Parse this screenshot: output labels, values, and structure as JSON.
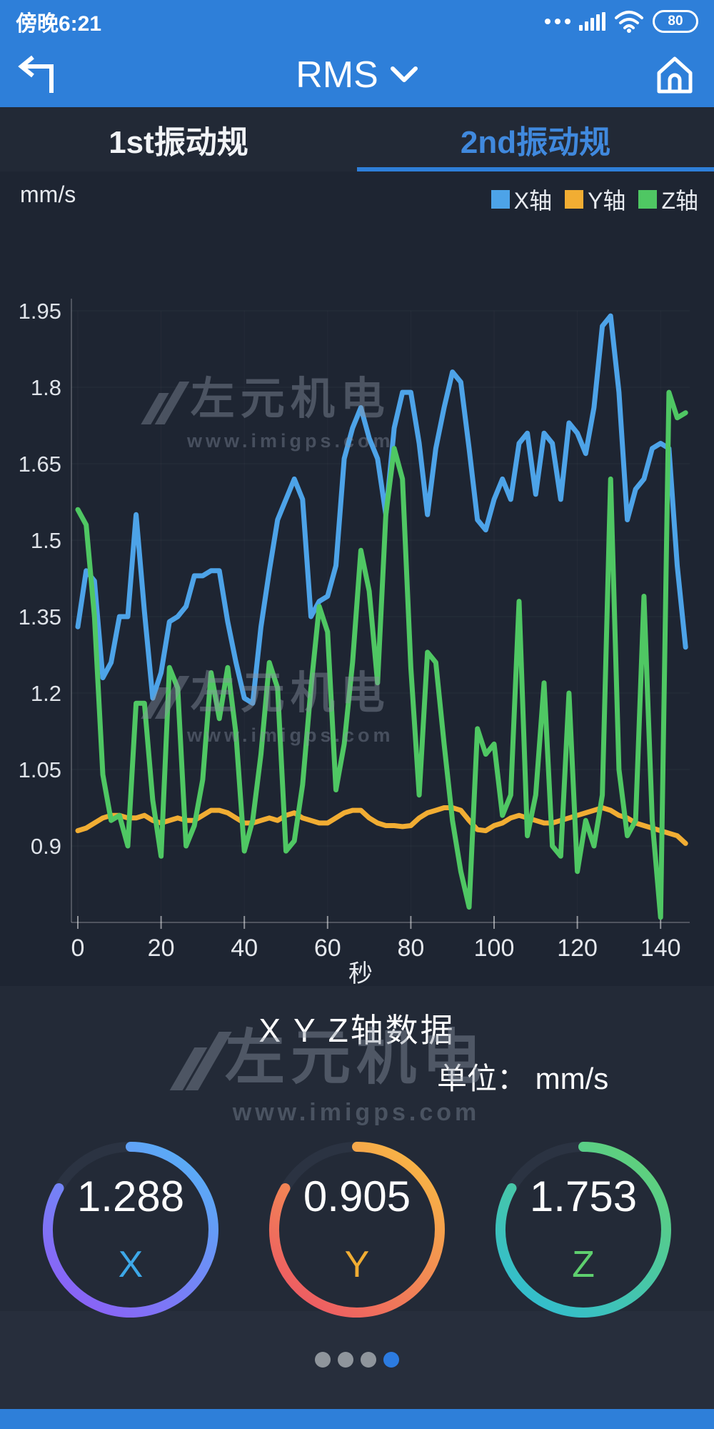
{
  "status_bar": {
    "time": "傍晚6:21",
    "battery": "80"
  },
  "header": {
    "title": "RMS"
  },
  "tabs": [
    {
      "label": "1st振动规",
      "active": false
    },
    {
      "label": "2nd振动规",
      "active": true
    }
  ],
  "chart": {
    "unit_label": "mm/s",
    "xlabel": "秒"
  },
  "watermark": {
    "logo": "左元机电",
    "url": "www.imigps.com"
  },
  "chart_data": {
    "type": "line",
    "title": "",
    "xlabel": "秒",
    "ylabel": "mm/s",
    "ylim": [
      0.75,
      2.02
    ],
    "xlim": [
      0,
      148
    ],
    "grid": false,
    "legend_position": "top-right",
    "yticks": [
      {
        "v": 1.95,
        "label": "1.95"
      },
      {
        "v": 1.8,
        "label": "1.8"
      },
      {
        "v": 1.65,
        "label": "1.65"
      },
      {
        "v": 1.5,
        "label": "1.5"
      },
      {
        "v": 1.35,
        "label": "1.35"
      },
      {
        "v": 1.2,
        "label": "1.2"
      },
      {
        "v": 1.05,
        "label": "1.05"
      },
      {
        "v": 0.9,
        "label": "0.9"
      }
    ],
    "xticks": [
      0,
      20,
      40,
      60,
      80,
      100,
      120,
      140
    ],
    "x": [
      0,
      2,
      4,
      6,
      8,
      10,
      12,
      14,
      16,
      18,
      20,
      22,
      24,
      26,
      28,
      30,
      32,
      34,
      36,
      38,
      40,
      42,
      44,
      46,
      48,
      50,
      52,
      54,
      56,
      58,
      60,
      62,
      64,
      66,
      68,
      70,
      72,
      74,
      76,
      78,
      80,
      82,
      84,
      86,
      88,
      90,
      92,
      94,
      96,
      98,
      100,
      102,
      104,
      106,
      108,
      110,
      112,
      114,
      116,
      118,
      120,
      122,
      124,
      126,
      128,
      130,
      132,
      134,
      136,
      138,
      140,
      142,
      144,
      146
    ],
    "series": [
      {
        "name": "X轴",
        "color": "#4da3e8",
        "values": [
          1.33,
          1.44,
          1.42,
          1.23,
          1.26,
          1.35,
          1.35,
          1.55,
          1.36,
          1.19,
          1.24,
          1.34,
          1.35,
          1.37,
          1.43,
          1.43,
          1.44,
          1.44,
          1.34,
          1.26,
          1.19,
          1.18,
          1.33,
          1.44,
          1.54,
          1.58,
          1.62,
          1.58,
          1.35,
          1.38,
          1.39,
          1.45,
          1.66,
          1.72,
          1.76,
          1.7,
          1.66,
          1.55,
          1.72,
          1.79,
          1.79,
          1.69,
          1.55,
          1.68,
          1.76,
          1.83,
          1.81,
          1.68,
          1.54,
          1.52,
          1.58,
          1.62,
          1.58,
          1.69,
          1.71,
          1.59,
          1.71,
          1.69,
          1.58,
          1.73,
          1.71,
          1.67,
          1.76,
          1.92,
          1.94,
          1.79,
          1.54,
          1.6,
          1.62,
          1.68,
          1.69,
          1.68,
          1.45,
          1.29
        ]
      },
      {
        "name": "Y轴",
        "color": "#f1ad33",
        "values": [
          0.93,
          0.935,
          0.945,
          0.955,
          0.96,
          0.96,
          0.955,
          0.955,
          0.96,
          0.95,
          0.945,
          0.95,
          0.955,
          0.95,
          0.95,
          0.96,
          0.97,
          0.97,
          0.965,
          0.955,
          0.945,
          0.945,
          0.95,
          0.955,
          0.95,
          0.96,
          0.965,
          0.955,
          0.95,
          0.945,
          0.945,
          0.955,
          0.965,
          0.97,
          0.97,
          0.955,
          0.945,
          0.94,
          0.94,
          0.938,
          0.94,
          0.955,
          0.965,
          0.97,
          0.975,
          0.975,
          0.97,
          0.95,
          0.932,
          0.93,
          0.94,
          0.945,
          0.955,
          0.96,
          0.955,
          0.95,
          0.945,
          0.945,
          0.95,
          0.955,
          0.96,
          0.965,
          0.97,
          0.975,
          0.97,
          0.96,
          0.955,
          0.945,
          0.94,
          0.935,
          0.93,
          0.925,
          0.92,
          0.905
        ]
      },
      {
        "name": "Z轴",
        "color": "#4fc763",
        "values": [
          1.56,
          1.53,
          1.35,
          1.04,
          0.95,
          0.96,
          0.9,
          1.18,
          1.18,
          0.99,
          0.88,
          1.25,
          1.21,
          0.9,
          0.94,
          1.03,
          1.24,
          1.15,
          1.25,
          1.12,
          0.89,
          0.95,
          1.08,
          1.26,
          1.21,
          0.89,
          0.91,
          1.02,
          1.21,
          1.37,
          1.32,
          1.01,
          1.1,
          1.26,
          1.48,
          1.4,
          1.22,
          1.55,
          1.68,
          1.62,
          1.25,
          1.0,
          1.28,
          1.26,
          1.1,
          0.95,
          0.85,
          0.78,
          1.13,
          1.08,
          1.1,
          0.96,
          1.0,
          1.38,
          0.92,
          1.0,
          1.22,
          0.9,
          0.88,
          1.2,
          0.85,
          0.95,
          0.9,
          1.0,
          1.62,
          1.05,
          0.92,
          0.95,
          1.39,
          0.95,
          0.76,
          1.79,
          1.74,
          1.75
        ]
      }
    ]
  },
  "data_section": {
    "title": "X Y Z轴数据",
    "unit_line": "单位： mm/s",
    "gauges": [
      {
        "label": "X",
        "value": "1.288",
        "label_color": "#3da8e8",
        "grad": [
          "#57b0f6",
          "#8e5cf6"
        ]
      },
      {
        "label": "Y",
        "value": "0.905",
        "label_color": "#f1ad33",
        "grad": [
          "#f8b944",
          "#ec5565"
        ]
      },
      {
        "label": "Z",
        "value": "1.753",
        "label_color": "#5ecf6e",
        "grad": [
          "#62d177",
          "#2fbcd4"
        ]
      }
    ]
  },
  "pager": {
    "dots": 4,
    "active_index": 3,
    "active_color": "#2c7be0",
    "dot_color": "#8f959c"
  }
}
